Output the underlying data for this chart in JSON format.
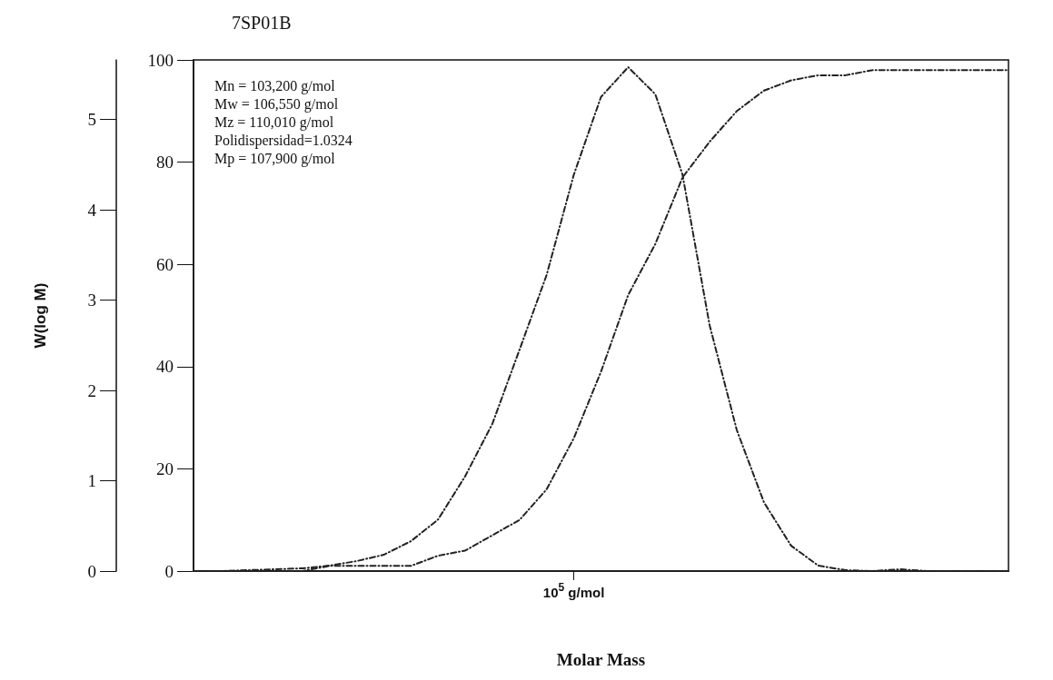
{
  "chart_data": {
    "type": "line",
    "title": "7SP01B",
    "xlabel": "Molar Mass",
    "ylabel": "W(log M)",
    "categories": [
      null,
      null,
      null,
      null,
      null,
      null,
      null,
      null,
      null,
      null,
      null,
      null,
      null,
      null,
      "10$^{5}$ g/mol",
      null,
      null,
      null,
      null,
      null,
      null,
      null,
      null,
      null,
      null,
      null,
      null,
      null,
      null,
      null,
      null
    ],
    "series": [
      {
        "color": "#222222",
        "values": [
          0,
          0,
          0.01,
          0.02,
          0.03,
          0.06,
          0.11,
          0.18,
          0.33,
          0.57,
          1.05,
          1.63,
          2.45,
          3.28,
          4.39,
          5.25,
          5.58,
          5.28,
          4.39,
          2.72,
          1.56,
          0.76,
          0.28,
          0.06,
          0.01,
          0,
          0.02,
          0,
          0,
          0,
          0
        ]
      },
      {
        "color": "#222222",
        "axis": "y2",
        "values": [
          0,
          0,
          0,
          0,
          0,
          1,
          1,
          1,
          1,
          3,
          4,
          7,
          10,
          16,
          26,
          39,
          54,
          64,
          77,
          84,
          90,
          94,
          96,
          97,
          97,
          98,
          98,
          98,
          98,
          98,
          98
        ]
      }
    ],
    "ylim": [
      0,
      5.66
    ],
    "yticks": [
      0,
      1,
      2,
      3,
      4,
      5
    ],
    "y2lim": [
      0,
      100
    ],
    "y2ticks": [
      0,
      20,
      40,
      60,
      80,
      100
    ],
    "annotations": [
      "Mn = 103,200 g/mol",
      "Mw = 106,550 g/mol",
      "Mz = 110,010 g/mol",
      "Polidispersidad=1.0324",
      "Mp = 107,900 g/mol"
    ],
    "grid": false,
    "marker": "none",
    "line_style": "dashed"
  }
}
